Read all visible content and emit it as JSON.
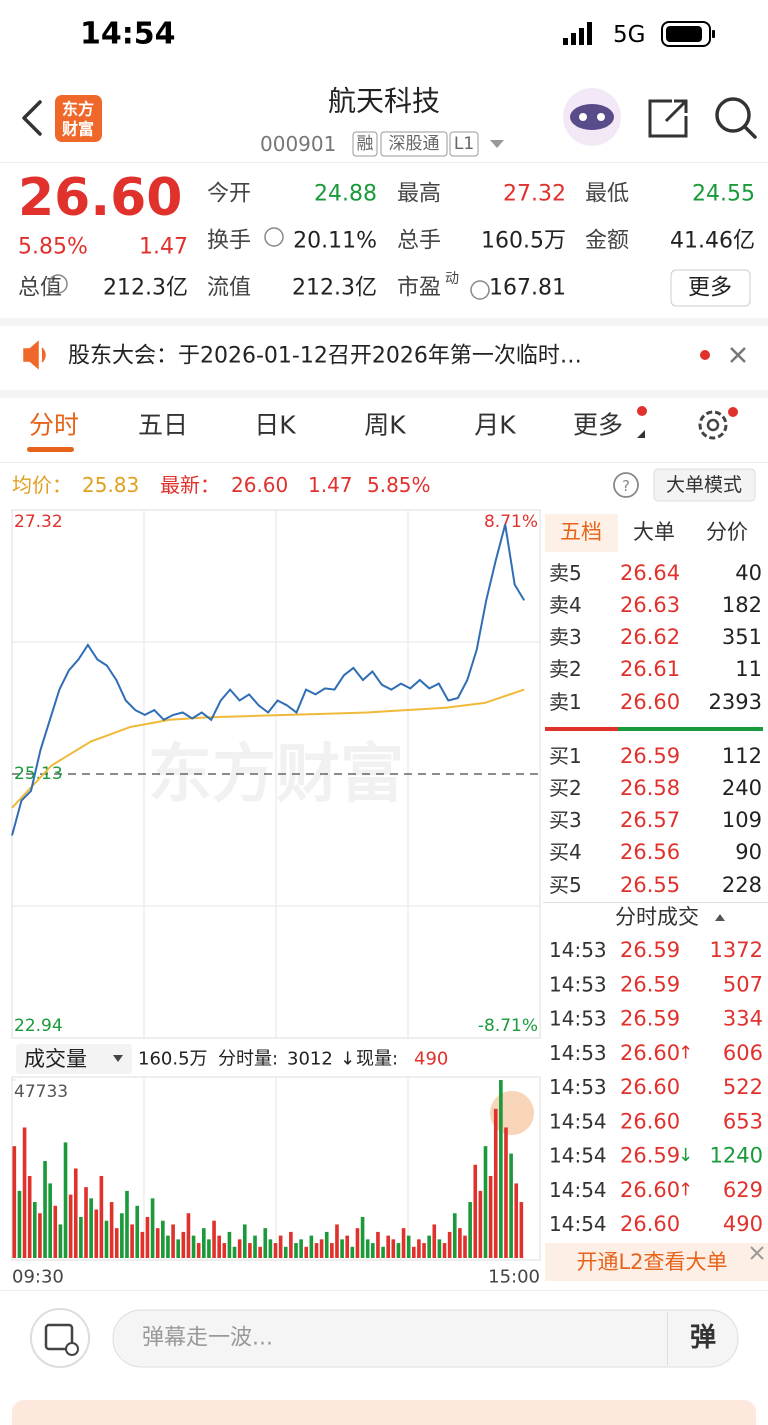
{
  "status_bar": {
    "time": "14:54",
    "network": "5G"
  },
  "header": {
    "logo": [
      "东方",
      "财富"
    ],
    "title": "航天科技",
    "code": "000901",
    "tags": [
      "融",
      "深股通",
      "L1"
    ]
  },
  "quote": {
    "price": "26.60",
    "change_pct": "5.85%",
    "change": "1.47",
    "fields": [
      {
        "label": "今开",
        "value": "24.88",
        "color": "#1a9a3a"
      },
      {
        "label": "最高",
        "value": "27.32",
        "color": "#e0312c"
      },
      {
        "label": "最低",
        "value": "24.55",
        "color": "#1a9a3a"
      },
      {
        "label": "换手",
        "value": "20.11%",
        "color": "#222222"
      },
      {
        "label": "总手",
        "value": "160.5万",
        "color": "#222222"
      },
      {
        "label": "金额",
        "value": "41.46亿",
        "color": "#222222"
      },
      {
        "label": "总值",
        "value": "212.3亿",
        "color": "#222222"
      },
      {
        "label": "流值",
        "value": "212.3亿",
        "color": "#222222"
      },
      {
        "label": "市盈",
        "sup": "动",
        "value": "167.81",
        "color": "#222222"
      }
    ],
    "more": "更多"
  },
  "notice": "股东大会：于2026-01-12召开2026年第一次临时…",
  "tabs": [
    "分时",
    "五日",
    "日K",
    "周K",
    "月K",
    "更多"
  ],
  "summary": {
    "avg_label": "均价：",
    "avg": "25.83",
    "last_label": "最新：",
    "last": "26.60",
    "change": "1.47",
    "change_pct": "5.85%",
    "mode": "大单模式"
  },
  "chart_data": [
    {
      "type": "line",
      "watermark": "东方财富",
      "ylim": [
        22.94,
        27.32
      ],
      "yticks": [
        27.32,
        25.13,
        22.94
      ],
      "y2lim": [
        -8.71,
        8.71
      ],
      "y2ticks": [
        {
          "value": 8.71,
          "label": "8.71%"
        },
        {
          "value": -8.71,
          "label": "-8.71%"
        }
      ],
      "series": [
        {
          "color": "#2f6db5",
          "values": [
            24.62,
            24.91,
            24.99,
            25.33,
            25.58,
            25.83,
            25.99,
            26.08,
            26.2,
            26.08,
            26.03,
            25.91,
            25.74,
            25.66,
            25.62,
            25.66,
            25.58,
            25.62,
            25.64,
            25.59,
            25.64,
            25.58,
            25.74,
            25.83,
            25.74,
            25.79,
            25.7,
            25.64,
            25.74,
            25.7,
            25.64,
            25.83,
            25.79,
            25.84,
            25.83,
            25.95,
            26.01,
            25.91,
            25.98,
            25.87,
            25.83,
            25.88,
            25.84,
            25.91,
            25.84,
            25.88,
            25.74,
            25.76,
            25.91,
            26.16,
            26.57,
            26.9,
            27.2,
            26.7,
            26.57
          ]
        },
        {
          "color": "#f0b93a",
          "values": [
            24.85,
            25.2,
            25.4,
            25.52,
            25.58,
            25.6,
            25.61,
            25.62,
            25.63,
            25.64,
            25.66,
            25.68,
            25.72,
            25.83
          ]
        }
      ]
    },
    {
      "type": "bar",
      "indicator": "成交量",
      "total": "160.5万",
      "minute_volume_label": "分时量:",
      "minute_volume": "3012",
      "arrow": "↓",
      "current_label": "现量:",
      "current": "490",
      "ylim": [
        0,
        47733
      ],
      "yticks": [
        47733
      ],
      "xlabels": [
        "09:30",
        "15:00"
      ],
      "up_color": "#e0312c",
      "down_color": "#1a9a3a",
      "values": [
        30000,
        18000,
        35000,
        22000,
        15000,
        12000,
        26000,
        20000,
        14000,
        9000,
        31000,
        17000,
        24000,
        11000,
        19000,
        16000,
        13000,
        22000,
        10000,
        15000,
        8000,
        12000,
        18000,
        9000,
        14000,
        7000,
        11000,
        16000,
        8000,
        10000,
        6000,
        9000,
        5000,
        7000,
        12000,
        6000,
        4000,
        8000,
        5000,
        10000,
        6000,
        4000,
        7000,
        3000,
        5000,
        9000,
        4000,
        6000,
        3000,
        8000,
        5000,
        4000,
        6000,
        3000,
        7000,
        4000,
        5000,
        3000,
        6000,
        4000,
        5000,
        7000,
        4000,
        9000,
        5000,
        6000,
        3000,
        8000,
        11000,
        5000,
        4000,
        7000,
        3000,
        6000,
        5000,
        4000,
        8000,
        6000,
        3000,
        5000,
        4000,
        6000,
        9000,
        5000,
        4000,
        7000,
        12000,
        8000,
        6000,
        15000,
        25000,
        18000,
        30000,
        22000,
        40000,
        47733,
        35000,
        28000,
        20000,
        15000
      ],
      "rising": [
        true,
        false,
        true,
        true,
        false,
        true,
        false,
        false,
        true,
        false,
        false,
        true,
        true,
        false,
        true,
        false,
        true,
        true,
        false,
        true,
        true,
        false,
        false,
        true,
        false,
        true,
        true,
        false,
        true,
        false,
        false,
        true,
        false,
        true,
        true,
        false,
        true,
        false,
        false,
        true,
        true,
        true,
        false,
        false,
        true,
        false,
        true,
        false,
        true,
        false,
        false,
        true,
        true,
        false,
        true,
        false,
        false,
        true,
        false,
        true,
        true,
        false,
        true,
        true,
        false,
        true,
        false,
        true,
        false,
        false,
        false,
        true,
        false,
        true,
        true,
        false,
        true,
        false,
        true,
        true,
        true,
        false,
        true,
        false,
        true,
        true,
        false,
        true,
        true,
        false,
        true,
        true,
        false,
        true,
        true,
        false,
        true,
        false,
        true,
        true
      ]
    }
  ],
  "depth": {
    "tabs": [
      "五档",
      "大单",
      "分价"
    ],
    "asks": [
      [
        "卖5",
        "26.64",
        "40"
      ],
      [
        "卖4",
        "26.63",
        "182"
      ],
      [
        "卖3",
        "26.62",
        "351"
      ],
      [
        "卖2",
        "26.61",
        "11"
      ],
      [
        "卖1",
        "26.60",
        "2393"
      ]
    ],
    "bids": [
      [
        "买1",
        "26.59",
        "112"
      ],
      [
        "买2",
        "26.58",
        "240"
      ],
      [
        "买3",
        "26.57",
        "109"
      ],
      [
        "买4",
        "26.56",
        "90"
      ],
      [
        "买5",
        "26.55",
        "228"
      ]
    ]
  },
  "trades": {
    "title": "分时成交",
    "rows": [
      {
        "time": "14:53",
        "price": "26.59",
        "volume": "1372",
        "color": "#e0312c"
      },
      {
        "time": "14:53",
        "price": "26.59",
        "volume": "507",
        "color": "#e0312c"
      },
      {
        "time": "14:53",
        "price": "26.59",
        "volume": "334",
        "color": "#e0312c"
      },
      {
        "time": "14:53",
        "price": "26.60",
        "arrow": "↑",
        "volume": "606",
        "color": "#e0312c"
      },
      {
        "time": "14:53",
        "price": "26.60",
        "volume": "522",
        "color": "#e0312c"
      },
      {
        "time": "14:54",
        "price": "26.60",
        "volume": "653",
        "color": "#e0312c"
      },
      {
        "time": "14:54",
        "price": "26.59",
        "arrow": "↓",
        "volume": "1240",
        "color": "#1a9a3a"
      },
      {
        "time": "14:54",
        "price": "26.60",
        "arrow": "↑",
        "volume": "629",
        "color": "#e0312c"
      },
      {
        "time": "14:54",
        "price": "26.60",
        "volume": "490",
        "color": "#e0312c"
      }
    ]
  },
  "l2_banner": "开通L2查看大单",
  "input": {
    "placeholder": "弹幕走一波...",
    "button": "弹"
  }
}
